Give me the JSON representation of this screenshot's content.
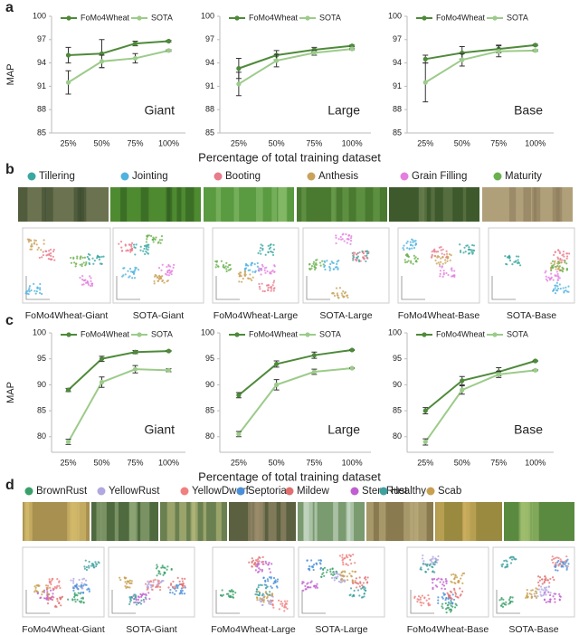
{
  "panels": [
    "a",
    "b",
    "c",
    "d"
  ],
  "chart_data": [
    {
      "type": "line",
      "annotation": "Giant",
      "y_label": "MAP",
      "categories": [
        "25%",
        "50%",
        "75%",
        "100%"
      ],
      "ylim": [
        85,
        100
      ],
      "yticks": [
        85,
        88,
        91,
        94,
        97,
        100
      ],
      "series": [
        {
          "name": "FoMo4Wheat",
          "color": "#4e8a3a",
          "values": [
            95.0,
            95.2,
            96.5,
            96.8
          ],
          "errors": [
            1.0,
            1.8,
            0.3,
            0.1
          ]
        },
        {
          "name": "SOTA",
          "color": "#9ccb8a",
          "values": [
            91.5,
            94.2,
            94.6,
            95.6
          ],
          "errors": [
            1.5,
            0.8,
            0.6,
            0.1
          ]
        }
      ]
    },
    {
      "type": "line",
      "annotation": "Large",
      "x_label": "Percentage of total training dataset",
      "categories": [
        "25%",
        "50%",
        "75%",
        "100%"
      ],
      "ylim": [
        85,
        100
      ],
      "yticks": [
        85,
        88,
        91,
        94,
        97,
        100
      ],
      "series": [
        {
          "name": "FoMo4Wheat",
          "color": "#4e8a3a",
          "values": [
            93.3,
            95.0,
            95.7,
            96.2
          ],
          "errors": [
            1.3,
            0.6,
            0.3,
            0.1
          ]
        },
        {
          "name": "SOTA",
          "color": "#9ccb8a",
          "values": [
            91.3,
            94.3,
            95.3,
            95.8
          ],
          "errors": [
            1.5,
            0.8,
            0.3,
            0.1
          ]
        }
      ]
    },
    {
      "type": "line",
      "annotation": "Base",
      "categories": [
        "25%",
        "50%",
        "75%",
        "100%"
      ],
      "ylim": [
        85,
        100
      ],
      "yticks": [
        85,
        88,
        91,
        94,
        97,
        100
      ],
      "series": [
        {
          "name": "FoMo4Wheat",
          "color": "#4e8a3a",
          "values": [
            94.5,
            95.3,
            95.8,
            96.3
          ],
          "errors": [
            0.5,
            0.8,
            0.5,
            0.1
          ]
        },
        {
          "name": "SOTA",
          "color": "#9ccb8a",
          "values": [
            91.5,
            94.4,
            95.5,
            95.6
          ],
          "errors": [
            2.5,
            0.8,
            0.7,
            0.1
          ]
        }
      ]
    },
    {
      "type": "line",
      "annotation": "Giant",
      "y_label": "MAP",
      "categories": [
        "25%",
        "50%",
        "75%",
        "100%"
      ],
      "ylim": [
        77,
        100
      ],
      "yticks": [
        80,
        85,
        90,
        95,
        100
      ],
      "series": [
        {
          "name": "FoMo4Wheat",
          "color": "#4e8a3a",
          "values": [
            89.0,
            95.0,
            96.3,
            96.5
          ],
          "errors": [
            0.3,
            0.5,
            0.3,
            0.1
          ]
        },
        {
          "name": "SOTA",
          "color": "#9ccb8a",
          "values": [
            79.0,
            90.5,
            93.0,
            92.8
          ],
          "errors": [
            0.5,
            1.0,
            0.7,
            0.3
          ]
        }
      ]
    },
    {
      "type": "line",
      "annotation": "Large",
      "x_label": "Percentage of total training dataset",
      "categories": [
        "25%",
        "50%",
        "75%",
        "100%"
      ],
      "ylim": [
        77,
        100
      ],
      "yticks": [
        80,
        85,
        90,
        95,
        100
      ],
      "series": [
        {
          "name": "FoMo4Wheat",
          "color": "#4e8a3a",
          "values": [
            88.0,
            94.0,
            95.7,
            96.7
          ],
          "errors": [
            0.5,
            0.6,
            0.6,
            0.1
          ]
        },
        {
          "name": "SOTA",
          "color": "#9ccb8a",
          "values": [
            80.5,
            90.0,
            92.5,
            93.2
          ],
          "errors": [
            0.5,
            1.0,
            0.5,
            0.1
          ]
        }
      ]
    },
    {
      "type": "line",
      "annotation": "Base",
      "categories": [
        "25%",
        "50%",
        "75%",
        "100%"
      ],
      "ylim": [
        77,
        100
      ],
      "yticks": [
        80,
        85,
        90,
        95,
        100
      ],
      "series": [
        {
          "name": "FoMo4Wheat",
          "color": "#4e8a3a",
          "values": [
            85.0,
            90.8,
            92.5,
            94.6
          ],
          "errors": [
            0.6,
            0.8,
            0.8,
            0.1
          ]
        },
        {
          "name": "SOTA",
          "color": "#9ccb8a",
          "values": [
            79.0,
            89.0,
            92.0,
            92.8
          ],
          "errors": [
            0.6,
            0.8,
            0.6,
            0.1
          ]
        }
      ]
    }
  ],
  "panel_b": {
    "classes": [
      {
        "name": "Tillering",
        "color": "#3aa8a0"
      },
      {
        "name": "Jointing",
        "color": "#4fb3e0"
      },
      {
        "name": "Booting",
        "color": "#e87b8c"
      },
      {
        "name": "Anthesis",
        "color": "#c9a35a"
      },
      {
        "name": "Grain Filling",
        "color": "#e47fe0"
      },
      {
        "name": "Maturity",
        "color": "#6ab04c"
      }
    ],
    "embeddings": [
      "FoMo4Wheat-Giant",
      "SOTA-Giant",
      "FoMo4Wheat-Large",
      "SOTA-Large",
      "FoMo4Wheat-Base",
      "SOTA-Base"
    ]
  },
  "panel_d": {
    "classes": [
      {
        "name": "BrownRust",
        "color": "#3aa06a"
      },
      {
        "name": "YellowRust",
        "color": "#b0a8e0"
      },
      {
        "name": "YellowDwarf",
        "color": "#f08080"
      },
      {
        "name": "Septoria",
        "color": "#4a90d9"
      },
      {
        "name": "Mildew",
        "color": "#e07070"
      },
      {
        "name": "StemRust",
        "color": "#c060d0"
      },
      {
        "name": "Scab",
        "color": "#c8a050"
      },
      {
        "name": "Healthy",
        "color": "#40a0a0"
      }
    ],
    "embeddings": [
      "FoMo4Wheat-Giant",
      "SOTA-Giant",
      "FoMo4Wheat-Large",
      "SOTA-Large",
      "FoMo4Wheat-Base",
      "SOTA-Base"
    ]
  }
}
